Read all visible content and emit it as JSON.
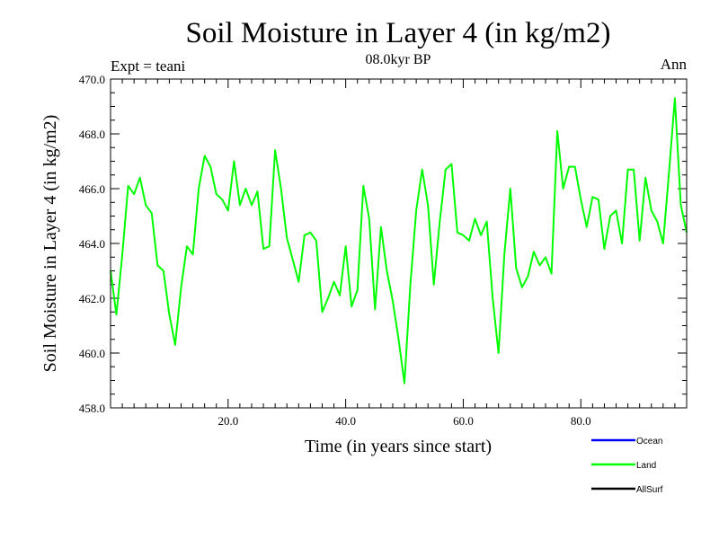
{
  "chart_data": {
    "type": "line",
    "title": "Soil Moisture in Layer 4 (in kg/m2)",
    "subtitle": "08.0kyr BP",
    "left_label": "Expt = teani",
    "right_label": "Ann",
    "xlabel": "Time (in years since start)",
    "ylabel": "Soil Moisture in Layer 4 (in kg/m2)",
    "xlim": [
      0,
      98
    ],
    "ylim": [
      458.0,
      470.0
    ],
    "x_ticks": [
      20,
      40,
      60,
      80
    ],
    "x_tick_labels": [
      "20.0",
      "40.0",
      "60.0",
      "80.0"
    ],
    "y_ticks": [
      458,
      460,
      462,
      464,
      466,
      468,
      470
    ],
    "y_tick_labels": [
      "458.0",
      "460.0",
      "462.0",
      "464.0",
      "466.0",
      "468.0",
      "470.0"
    ],
    "legend_position": "bottom-right",
    "legend": [
      {
        "name": "Ocean",
        "color": "#0000ff"
      },
      {
        "name": "Land",
        "color": "#00ff00"
      },
      {
        "name": "AllSurf",
        "color": "#000000"
      }
    ],
    "series": [
      {
        "name": "Land",
        "color": "#00ff00",
        "x": [
          0,
          1,
          2,
          3,
          4,
          5,
          6,
          7,
          8,
          9,
          10,
          11,
          12,
          13,
          14,
          15,
          16,
          17,
          18,
          19,
          20,
          21,
          22,
          23,
          24,
          25,
          26,
          27,
          28,
          29,
          30,
          31,
          32,
          33,
          34,
          35,
          36,
          37,
          38,
          39,
          40,
          41,
          42,
          43,
          44,
          45,
          46,
          47,
          48,
          49,
          50,
          51,
          52,
          53,
          54,
          55,
          56,
          57,
          58,
          59,
          60,
          61,
          62,
          63,
          64,
          65,
          66,
          67,
          68,
          69,
          70,
          71,
          72,
          73,
          74,
          75,
          76,
          77,
          78,
          79,
          80,
          81,
          82,
          83,
          84,
          85,
          86,
          87,
          88,
          89,
          90,
          91,
          92,
          93,
          94,
          95,
          96,
          97,
          98
        ],
        "values": [
          463.0,
          461.4,
          463.6,
          466.1,
          465.8,
          466.4,
          465.4,
          465.1,
          463.2,
          463.0,
          461.4,
          460.3,
          462.4,
          463.9,
          463.6,
          466.0,
          467.2,
          466.8,
          465.8,
          465.6,
          465.2,
          467.0,
          465.4,
          466.0,
          465.4,
          465.9,
          463.8,
          463.9,
          467.4,
          466.0,
          464.2,
          463.4,
          462.6,
          464.3,
          464.4,
          464.1,
          461.5,
          462.0,
          462.6,
          462.1,
          463.9,
          461.7,
          462.3,
          466.1,
          464.9,
          461.6,
          464.6,
          463.0,
          461.9,
          460.5,
          458.9,
          462.5,
          465.2,
          466.7,
          465.4,
          462.5,
          464.8,
          466.7,
          466.9,
          464.4,
          464.3,
          464.1,
          464.9,
          464.3,
          464.8,
          462.0,
          460.0,
          463.6,
          466.0,
          463.1,
          462.4,
          462.8,
          463.7,
          463.2,
          463.5,
          462.9,
          468.1,
          466.0,
          466.8,
          466.8,
          465.6,
          464.6,
          465.7,
          465.6,
          463.8,
          465.0,
          465.2,
          464.0,
          466.7,
          466.7,
          464.1,
          466.4,
          465.2,
          464.8,
          464.0,
          466.6,
          469.3,
          465.4,
          464.4
        ]
      }
    ]
  }
}
